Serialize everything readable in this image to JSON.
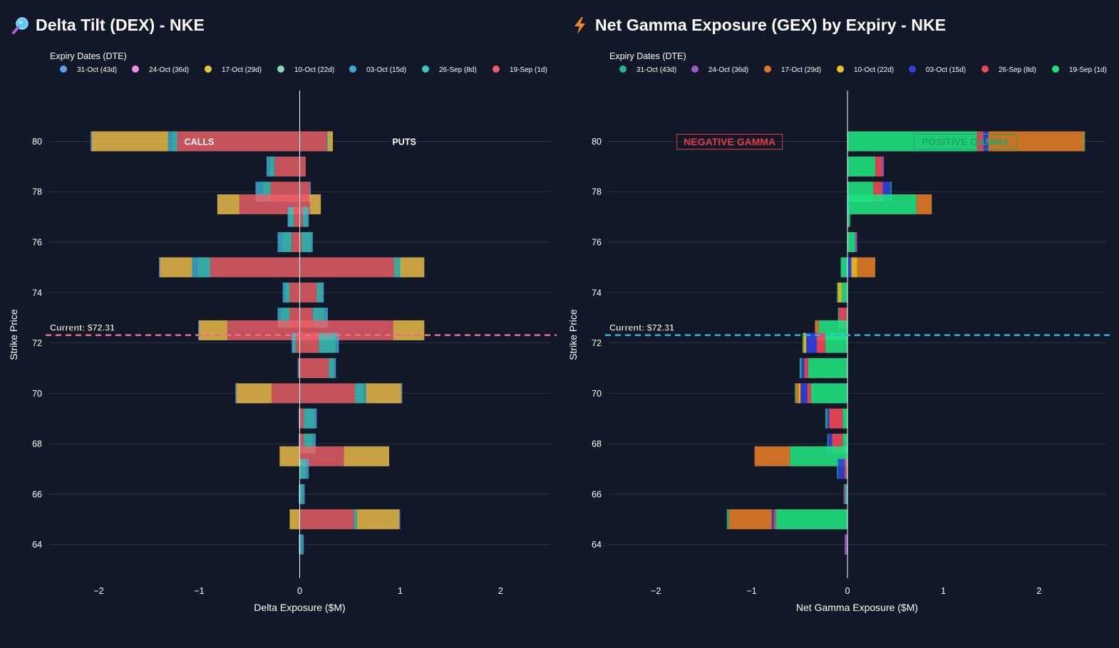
{
  "colors": {
    "background": "#111827",
    "grid": "#263043",
    "zero_line": "#ffffff",
    "dex_current_line": "#f06c8c",
    "gex_current_line": "#22b8f0",
    "negative_gamma": "#e33b47",
    "positive_gamma": "#1fa86a"
  },
  "dex": {
    "title": "Delta Tilt (DEX) - NKE",
    "icon": "magnifier-icon",
    "legend_title": "Expiry Dates (DTE)",
    "legend": [
      {
        "label": "31-Oct (43d)",
        "color": "#5aa0f0"
      },
      {
        "label": "24-Oct (36d)",
        "color": "#ef8cf0"
      },
      {
        "label": "17-Oct (29d)",
        "color": "#efc048"
      },
      {
        "label": "10-Oct (22d)",
        "color": "#8fd8b0"
      },
      {
        "label": "03-Oct (15d)",
        "color": "#3ab0d8"
      },
      {
        "label": "26-Sep (8d)",
        "color": "#3cc8c0"
      },
      {
        "label": "19-Sep (1d)",
        "color": "#ee6068"
      }
    ],
    "xlabel": "Delta Exposure ($M)",
    "ylabel": "Strike Price",
    "calls_label": "CALLS",
    "puts_label": "PUTS",
    "current_label": "Current: $72.31"
  },
  "gex": {
    "title": "Net Gamma Exposure (GEX) by Expiry - NKE",
    "icon": "lightning-icon",
    "legend_title": "Expiry Dates (DTE)",
    "legend": [
      {
        "label": "31-Oct (43d)",
        "color": "#1fb890"
      },
      {
        "label": "24-Oct (36d)",
        "color": "#9b59c0"
      },
      {
        "label": "17-Oct (29d)",
        "color": "#e07a26"
      },
      {
        "label": "10-Oct (22d)",
        "color": "#f0c020"
      },
      {
        "label": "03-Oct (15d)",
        "color": "#3040e0"
      },
      {
        "label": "26-Sep (8d)",
        "color": "#f04858"
      },
      {
        "label": "19-Sep (1d)",
        "color": "#20e080"
      }
    ],
    "xlabel": "Net Gamma Exposure ($M)",
    "ylabel": "Strike Price",
    "negative_label": "NEGATIVE GAMMA",
    "positive_label": "POSITIVE GAMMA",
    "current_label": "Current: $72.31"
  },
  "chart_data": [
    {
      "type": "bar",
      "orientation": "horizontal",
      "stacked": true,
      "title": "Delta Tilt (DEX) - NKE",
      "xlabel": "Delta Exposure ($M)",
      "ylabel": "Strike Price",
      "xlim": [
        -2.5,
        2.5
      ],
      "ylim": [
        63,
        82.5
      ],
      "xticks": [
        -2,
        -1,
        0,
        1,
        2
      ],
      "yticks": [
        64,
        66,
        68,
        70,
        72,
        74,
        76,
        78,
        80
      ],
      "current_price": 72.31,
      "series_order_left": [
        "19-Sep (1d)",
        "26-Sep (8d)",
        "03-Oct (15d)",
        "10-Oct (22d)",
        "17-Oct (29d)",
        "24-Oct (36d)",
        "31-Oct (43d)"
      ],
      "series_order_right": [
        "19-Sep (1d)",
        "26-Sep (8d)",
        "03-Oct (15d)",
        "10-Oct (22d)",
        "17-Oct (29d)",
        "24-Oct (36d)",
        "31-Oct (43d)"
      ],
      "bars": [
        {
          "strike": 80,
          "calls": [
            1.22,
            0.05,
            0.04,
            0.0,
            0.76,
            0.0,
            0.01
          ],
          "puts": [
            0.27,
            0.01,
            0.0,
            0.0,
            0.05,
            0.0,
            0.0
          ]
        },
        {
          "strike": 79,
          "calls": [
            0.25,
            0.05,
            0.02,
            0.0,
            0.0,
            0.0,
            0.01
          ],
          "puts": [
            0.06,
            0.0,
            0.0,
            0.0,
            0.0,
            0.0,
            0.0
          ]
        },
        {
          "strike": 78,
          "calls": [
            0.29,
            0.08,
            0.06,
            0.0,
            0.0,
            0.0,
            0.01
          ],
          "puts": [
            0.1,
            0.0,
            0.0,
            0.0,
            0.0,
            0.0,
            0.01
          ]
        },
        {
          "strike": 77.5,
          "calls": [
            0.6,
            0.0,
            0.0,
            0.0,
            0.22,
            0.0,
            0.0
          ],
          "puts": [
            0.1,
            0.0,
            0.0,
            0.0,
            0.11,
            0.0,
            0.0
          ]
        },
        {
          "strike": 77,
          "calls": [
            0.06,
            0.05,
            0.0,
            0.0,
            0.0,
            0.0,
            0.01
          ],
          "puts": [
            0.03,
            0.05,
            0.0,
            0.0,
            0.0,
            0.0,
            0.01
          ]
        },
        {
          "strike": 76,
          "calls": [
            0.08,
            0.1,
            0.03,
            0.0,
            0.0,
            0.0,
            0.01
          ],
          "puts": [
            0.02,
            0.1,
            0.01,
            0.0,
            0.0,
            0.0,
            0.0
          ]
        },
        {
          "strike": 75,
          "calls": [
            0.89,
            0.13,
            0.05,
            0.0,
            0.32,
            0.0,
            0.01
          ],
          "puts": [
            0.94,
            0.06,
            0.0,
            0.0,
            0.24,
            0.0,
            0.0
          ]
        },
        {
          "strike": 74,
          "calls": [
            0.1,
            0.05,
            0.01,
            0.0,
            0.0,
            0.0,
            0.01
          ],
          "puts": [
            0.17,
            0.06,
            0.0,
            0.0,
            0.0,
            0.0,
            0.01
          ]
        },
        {
          "strike": 73,
          "calls": [
            0.1,
            0.09,
            0.02,
            0.0,
            0.0,
            0.0,
            0.01
          ],
          "puts": [
            0.13,
            0.12,
            0.02,
            0.0,
            0.0,
            0.0,
            0.01
          ]
        },
        {
          "strike": 72.5,
          "calls": [
            0.72,
            0.0,
            0.0,
            0.0,
            0.28,
            0.0,
            0.01
          ],
          "puts": [
            0.93,
            0.0,
            0.0,
            0.0,
            0.31,
            0.0,
            0.0
          ]
        },
        {
          "strike": 72,
          "calls": [
            0.04,
            0.03,
            0.0,
            0.0,
            0.0,
            0.0,
            0.01
          ],
          "puts": [
            0.19,
            0.17,
            0.02,
            0.0,
            0.0,
            0.0,
            0.01
          ]
        },
        {
          "strike": 71,
          "calls": [
            0.01,
            0.0,
            0.0,
            0.0,
            0.0,
            0.0,
            0.01
          ],
          "puts": [
            0.29,
            0.05,
            0.01,
            0.0,
            0.0,
            0.0,
            0.01
          ]
        },
        {
          "strike": 70,
          "calls": [
            0.28,
            0.0,
            0.0,
            0.0,
            0.35,
            0.0,
            0.01
          ],
          "puts": [
            0.55,
            0.09,
            0.02,
            0.0,
            0.35,
            0.0,
            0.01
          ]
        },
        {
          "strike": 69,
          "calls": [
            0.0,
            0.0,
            0.0,
            0.0,
            0.0,
            0.0,
            0.01
          ],
          "puts": [
            0.04,
            0.11,
            0.01,
            0.0,
            0.0,
            0.0,
            0.01
          ]
        },
        {
          "strike": 68,
          "calls": [
            0.0,
            0.0,
            0.0,
            0.0,
            0.0,
            0.0,
            0.01
          ],
          "puts": [
            0.04,
            0.09,
            0.02,
            0.0,
            0.0,
            0.0,
            0.01
          ]
        },
        {
          "strike": 67.5,
          "calls": [
            0.0,
            0.0,
            0.0,
            0.0,
            0.2,
            0.0,
            0.0
          ],
          "puts": [
            0.44,
            0.0,
            0.0,
            0.0,
            0.45,
            0.0,
            0.0
          ]
        },
        {
          "strike": 67,
          "calls": [
            0.0,
            0.0,
            0.0,
            0.0,
            0.0,
            0.0,
            0.0
          ],
          "puts": [
            0.0,
            0.06,
            0.02,
            0.0,
            0.0,
            0.0,
            0.01
          ]
        },
        {
          "strike": 66,
          "calls": [
            0.0,
            0.0,
            0.0,
            0.0,
            0.0,
            0.0,
            0.01
          ],
          "puts": [
            0.0,
            0.03,
            0.01,
            0.0,
            0.0,
            0.0,
            0.01
          ]
        },
        {
          "strike": 65,
          "calls": [
            0.0,
            0.0,
            0.0,
            0.0,
            0.1,
            0.0,
            0.0
          ],
          "puts": [
            0.54,
            0.03,
            0.0,
            0.0,
            0.42,
            0.0,
            0.01
          ]
        },
        {
          "strike": 64,
          "calls": [
            0.0,
            0.0,
            0.0,
            0.0,
            0.0,
            0.0,
            0.01
          ],
          "puts": [
            0.0,
            0.02,
            0.01,
            0.0,
            0.0,
            0.0,
            0.01
          ]
        }
      ]
    },
    {
      "type": "bar",
      "orientation": "horizontal",
      "stacked": true,
      "title": "Net Gamma Exposure (GEX) by Expiry - NKE",
      "xlabel": "Net Gamma Exposure ($M)",
      "ylabel": "Strike Price",
      "xlim": [
        -2.5,
        2.7
      ],
      "ylim": [
        63,
        82.5
      ],
      "xticks": [
        -2,
        -1,
        0,
        1,
        2
      ],
      "yticks": [
        64,
        66,
        68,
        70,
        72,
        74,
        76,
        78,
        80
      ],
      "current_price": 72.31,
      "series_order": [
        "19-Sep (1d)",
        "26-Sep (8d)",
        "03-Oct (15d)",
        "10-Oct (22d)",
        "17-Oct (29d)",
        "24-Oct (36d)",
        "31-Oct (43d)"
      ],
      "bars": [
        {
          "strike": 80,
          "values": [
            1.35,
            0.07,
            0.05,
            0.0,
            1.0,
            0.0,
            0.01
          ]
        },
        {
          "strike": 79,
          "values": [
            0.29,
            0.07,
            0.0,
            0.0,
            0.0,
            0.02,
            0.0
          ]
        },
        {
          "strike": 78,
          "values": [
            0.27,
            0.1,
            0.08,
            0.0,
            0.0,
            0.0,
            0.01
          ]
        },
        {
          "strike": 77.5,
          "values": [
            0.72,
            0.0,
            0.0,
            0.0,
            0.16,
            0.0,
            0.0
          ]
        },
        {
          "strike": 77,
          "values": [
            0.02,
            0.0,
            0.0,
            0.0,
            0.0,
            0.0,
            0.01
          ]
        },
        {
          "strike": 76,
          "values": [
            0.08,
            0.0,
            0.0,
            0.0,
            0.0,
            0.02,
            0.0
          ]
        },
        {
          "strike": 75,
          "values": [
            -0.07,
            0.0,
            0.04,
            0.06,
            0.19,
            0.0,
            0.0
          ]
        },
        {
          "strike": 74,
          "values": [
            -0.06,
            0.0,
            0.0,
            -0.04,
            0.0,
            0.0,
            -0.01
          ]
        },
        {
          "strike": 73,
          "values": [
            -0.01,
            -0.08,
            0.0,
            0.0,
            0.0,
            0.0,
            -0.01
          ]
        },
        {
          "strike": 72.5,
          "values": [
            -0.3,
            0.0,
            0.0,
            0.0,
            -0.04,
            0.0,
            0.0
          ]
        },
        {
          "strike": 72,
          "values": [
            -0.23,
            -0.09,
            -0.11,
            -0.03,
            0.0,
            0.0,
            -0.01
          ]
        },
        {
          "strike": 71,
          "values": [
            -0.41,
            -0.04,
            -0.03,
            0.0,
            0.0,
            0.0,
            -0.02
          ]
        },
        {
          "strike": 70,
          "values": [
            -0.38,
            -0.04,
            -0.07,
            -0.02,
            -0.03,
            0.0,
            -0.01
          ]
        },
        {
          "strike": 69,
          "values": [
            -0.05,
            -0.14,
            -0.02,
            0.0,
            0.0,
            0.0,
            -0.02
          ]
        },
        {
          "strike": 68,
          "values": [
            -0.05,
            -0.11,
            -0.04,
            0.0,
            0.0,
            0.0,
            -0.01
          ]
        },
        {
          "strike": 67.5,
          "values": [
            -0.6,
            0.0,
            0.0,
            0.0,
            -0.37,
            0.0,
            0.0
          ]
        },
        {
          "strike": 67,
          "values": [
            -0.01,
            -0.02,
            -0.07,
            0.0,
            0.0,
            0.0,
            -0.01
          ]
        },
        {
          "strike": 66,
          "values": [
            -0.02,
            0.0,
            0.0,
            0.0,
            0.0,
            -0.02,
            0.0
          ]
        },
        {
          "strike": 65,
          "values": [
            -0.75,
            -0.02,
            -0.02,
            0.0,
            -0.45,
            0.0,
            -0.02
          ]
        },
        {
          "strike": 64,
          "values": [
            0.0,
            0.0,
            0.0,
            0.0,
            0.0,
            -0.03,
            0.0
          ]
        }
      ]
    }
  ]
}
